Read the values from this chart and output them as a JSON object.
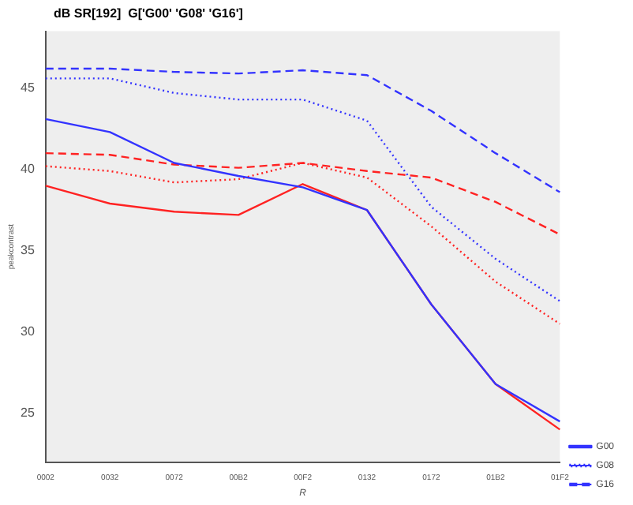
{
  "chart_data": {
    "type": "line",
    "title": "dB SR[192]  G['G00' 'G08' 'G16']",
    "xlabel": "R",
    "ylabel": "peakcontrast",
    "categories": [
      "0002",
      "0032",
      "0072",
      "00B2",
      "00F2",
      "0132",
      "0172",
      "01B2",
      "01F2"
    ],
    "series": [
      {
        "name": "G00",
        "color": "#3333ff",
        "line_style": "solid",
        "values": [
          43.1,
          42.3,
          40.4,
          39.6,
          38.9,
          37.5,
          31.7,
          26.8,
          24.5
        ]
      },
      {
        "name": "G08",
        "color": "#3333ff",
        "line_style": "dotted",
        "values": [
          45.6,
          45.6,
          44.7,
          44.3,
          44.3,
          43.0,
          37.7,
          34.5,
          31.9
        ]
      },
      {
        "name": "G16",
        "color": "#3333ff",
        "line_style": "dashed",
        "values": [
          46.2,
          46.2,
          46.0,
          45.9,
          46.1,
          45.8,
          43.6,
          41.0,
          38.6
        ]
      },
      {
        "color": "#ff2222",
        "line_style": "solid",
        "values": [
          39.0,
          37.9,
          37.4,
          37.2,
          39.1,
          37.5,
          31.7,
          26.8,
          24.0
        ]
      },
      {
        "color": "#ff2222",
        "line_style": "dotted",
        "values": [
          40.2,
          39.9,
          39.2,
          39.4,
          40.4,
          39.5,
          36.5,
          33.1,
          30.5
        ]
      },
      {
        "color": "#ff2222",
        "line_style": "dashed",
        "values": [
          41.0,
          40.9,
          40.3,
          40.1,
          40.4,
          39.9,
          39.5,
          38.0,
          36.0
        ]
      }
    ],
    "ylim": [
      22,
      48.5
    ],
    "yticks": [
      25,
      30,
      35,
      40,
      45
    ],
    "grid": false,
    "legend": "bottom right",
    "marker": "none"
  }
}
